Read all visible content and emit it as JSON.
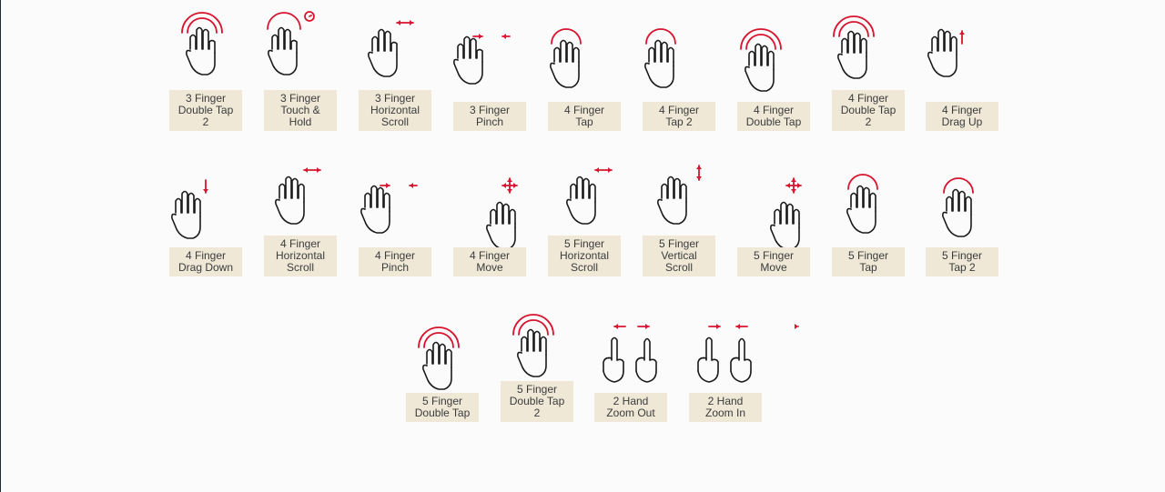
{
  "colors": {
    "accent": "#d8152f",
    "label_bg": "#efe8d7",
    "label_text": "#3b3b3b",
    "background": "#fbfbfb"
  },
  "gestures": [
    {
      "id": "g1",
      "lines": [
        "3 Finger",
        "Double Tap",
        "2"
      ],
      "icon": "tap-double-icon",
      "fingers": 3
    },
    {
      "id": "g2",
      "lines": [
        "3 Finger",
        "Touch &",
        "Hold"
      ],
      "icon": "touch-hold-icon",
      "fingers": 3
    },
    {
      "id": "g3",
      "lines": [
        "3 Finger",
        "Horizontal",
        "Scroll"
      ],
      "icon": "horizontal-scroll-icon",
      "fingers": 3
    },
    {
      "id": "g4",
      "lines": [
        "3 Finger",
        "Pinch"
      ],
      "icon": "pinch-icon",
      "fingers": 3
    },
    {
      "id": "g5",
      "lines": [
        "4 Finger",
        "Tap"
      ],
      "icon": "tap-icon",
      "fingers": 4
    },
    {
      "id": "g6",
      "lines": [
        "4 Finger",
        "Tap 2"
      ],
      "icon": "tap-icon",
      "fingers": 4
    },
    {
      "id": "g7",
      "lines": [
        "4 Finger",
        "Double Tap"
      ],
      "icon": "tap-double-icon",
      "fingers": 4
    },
    {
      "id": "g8",
      "lines": [
        "4 Finger",
        "Double Tap",
        "2"
      ],
      "icon": "tap-double-icon",
      "fingers": 4
    },
    {
      "id": "g9",
      "lines": [
        "4 Finger",
        "Drag Up"
      ],
      "icon": "drag-up-icon",
      "fingers": 4
    },
    {
      "id": "g10",
      "lines": [
        "4 Finger",
        "Drag Down"
      ],
      "icon": "drag-down-icon",
      "fingers": 4
    },
    {
      "id": "g11",
      "lines": [
        "4 Finger",
        "Horizontal",
        "Scroll"
      ],
      "icon": "horizontal-scroll-icon",
      "fingers": 4
    },
    {
      "id": "g12",
      "lines": [
        "4 Finger",
        "Pinch"
      ],
      "icon": "pinch-icon",
      "fingers": 4
    },
    {
      "id": "g13",
      "lines": [
        "4 Finger",
        "Move"
      ],
      "icon": "move-icon",
      "fingers": 4
    },
    {
      "id": "g14",
      "lines": [
        "5 Finger",
        "Horizontal",
        "Scroll"
      ],
      "icon": "horizontal-scroll-icon",
      "fingers": 5
    },
    {
      "id": "g15",
      "lines": [
        "5 Finger",
        "Vertical",
        "Scroll"
      ],
      "icon": "vertical-scroll-icon",
      "fingers": 5
    },
    {
      "id": "g16",
      "lines": [
        "5 Finger",
        "Move"
      ],
      "icon": "move-icon",
      "fingers": 5
    },
    {
      "id": "g17",
      "lines": [
        "5 Finger",
        "Tap"
      ],
      "icon": "tap-icon",
      "fingers": 5
    },
    {
      "id": "g18",
      "lines": [
        "5 Finger",
        "Tap 2"
      ],
      "icon": "tap-icon",
      "fingers": 5
    },
    {
      "id": "g19",
      "lines": [
        "5 Finger",
        "Double Tap"
      ],
      "icon": "tap-double-icon",
      "fingers": 5
    },
    {
      "id": "g20",
      "lines": [
        "5 Finger",
        "Double Tap",
        "2"
      ],
      "icon": "tap-double-icon",
      "fingers": 5
    },
    {
      "id": "g21",
      "lines": [
        "2 Hand",
        "Zoom Out"
      ],
      "icon": "two-hand-zoom-out-icon",
      "fingers": 2
    },
    {
      "id": "g22",
      "lines": [
        "2 Hand",
        "Zoom In"
      ],
      "icon": "two-hand-zoom-in-icon",
      "fingers": 2
    }
  ]
}
